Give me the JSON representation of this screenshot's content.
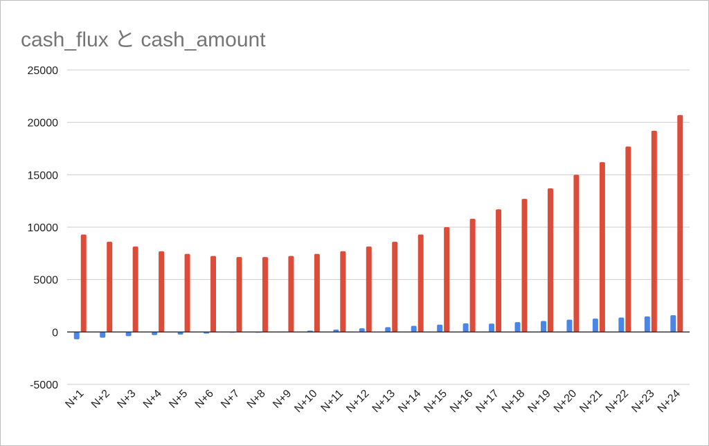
{
  "chart_data": {
    "type": "bar",
    "title": "cash_flux と cash_amount",
    "xlabel": "",
    "ylabel": "",
    "ylim": [
      -5000,
      25000
    ],
    "yticks": [
      "25000",
      "20000",
      "15000",
      "10000",
      "5000",
      "0",
      "-5000"
    ],
    "grid": true,
    "categories": [
      "N+1",
      "N+2",
      "N+3",
      "N+4",
      "N+5",
      "N+6",
      "N+7",
      "N+8",
      "N+9",
      "N+10",
      "N+11",
      "N+12",
      "N+13",
      "N+14",
      "N+15",
      "N+16",
      "N+17",
      "N+18",
      "N+19",
      "N+20",
      "N+21",
      "N+22",
      "N+23",
      "N+24"
    ],
    "series": [
      {
        "color": "#4a86e8",
        "values": [
          -700,
          -550,
          -400,
          -300,
          -250,
          -150,
          -40,
          -20,
          40,
          130,
          230,
          350,
          460,
          580,
          700,
          820,
          800,
          940,
          1050,
          1170,
          1280,
          1380,
          1480,
          1600
        ]
      },
      {
        "color": "#dd4b39",
        "values": [
          9300,
          8600,
          8150,
          7700,
          7450,
          7250,
          7150,
          7150,
          7250,
          7450,
          7700,
          8150,
          8600,
          9300,
          10000,
          10800,
          11700,
          12700,
          13700,
          15000,
          16200,
          17700,
          19200,
          20700
        ]
      }
    ]
  }
}
